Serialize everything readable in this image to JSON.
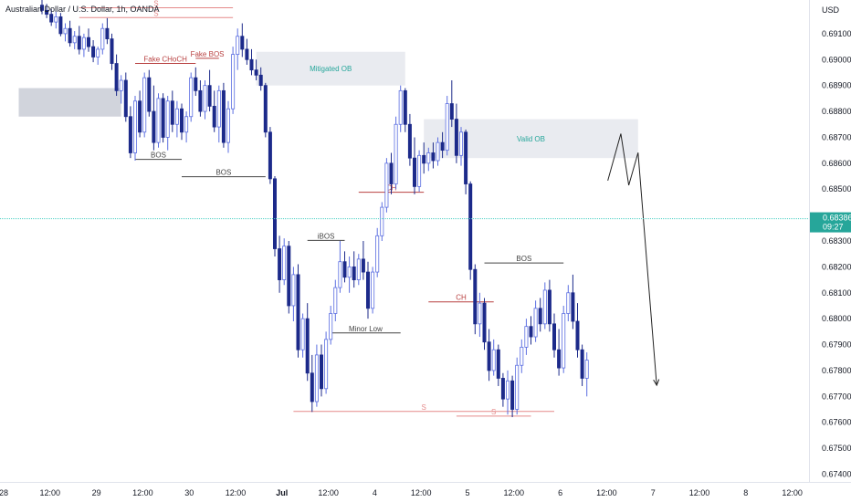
{
  "chart_data": {
    "type": "candlestick",
    "symbol_title": "Australian Dollar / U.S. Dollar, 1h, OANDA",
    "currency": "USD",
    "price_axis": {
      "ticks": [
        "0.69100",
        "0.69000",
        "0.68900",
        "0.68800",
        "0.68700",
        "0.68600",
        "0.68500",
        "0.68300",
        "0.68200",
        "0.68100",
        "0.68000",
        "0.67900",
        "0.67800",
        "0.67700",
        "0.67600",
        "0.67500",
        "0.67400"
      ],
      "range": [
        0.6737,
        0.6923
      ]
    },
    "time_axis": {
      "ticks": [
        "28",
        "12:00",
        "29",
        "12:00",
        "30",
        "12:00",
        "Jul",
        "12:00",
        "4",
        "12:00",
        "5",
        "12:00",
        "6",
        "12:00",
        "7",
        "12:00",
        "8",
        "12:00"
      ]
    },
    "current_price": {
      "value": "0.68386",
      "countdown": "09:27",
      "level": 0.68386
    },
    "zones": [
      {
        "label": "",
        "from_bar": -5,
        "to_bar": 17,
        "low": 0.6878,
        "high": 0.6889,
        "color": "#d1d4dc"
      },
      {
        "label": "Mitigated OB",
        "from_bar": 46,
        "to_bar": 78,
        "low": 0.689,
        "high": 0.6903,
        "color": "#e9ebf0"
      },
      {
        "label": "Valid OB",
        "from_bar": 82,
        "to_bar": 128,
        "low": 0.6862,
        "high": 0.6877,
        "color": "#e9ebf0"
      }
    ],
    "annotations": [
      {
        "label": "BOS",
        "type": "level",
        "from_bar": 20,
        "to_bar": 30,
        "price": 0.68615,
        "color": "#444444"
      },
      {
        "label": "BOS",
        "type": "level",
        "from_bar": 30,
        "to_bar": 48,
        "price": 0.68548,
        "color": "#444444"
      },
      {
        "label": "Fake CHoCH",
        "type": "level",
        "from_bar": 20,
        "to_bar": 33,
        "price": 0.68985,
        "color": "#b84040"
      },
      {
        "label": "Fake BOS",
        "type": "level",
        "from_bar": 33,
        "to_bar": 38,
        "price": 0.69005,
        "color": "#b84040"
      },
      {
        "label": "S",
        "type": "level",
        "from_bar": 8,
        "to_bar": 41,
        "price": 0.692,
        "color": "#e58a8a"
      },
      {
        "label": "S",
        "type": "level",
        "from_bar": 8,
        "to_bar": 41,
        "price": 0.69162,
        "color": "#e58a8a"
      },
      {
        "label": "CH",
        "type": "level",
        "from_bar": 68,
        "to_bar": 82,
        "price": 0.68488,
        "color": "#b84040"
      },
      {
        "label": "iBOS",
        "type": "level",
        "from_bar": 57,
        "to_bar": 65,
        "price": 0.68302,
        "color": "#444444"
      },
      {
        "label": "Minor Low",
        "type": "level",
        "from_bar": 62,
        "to_bar": 77,
        "price": 0.67945,
        "color": "#444444"
      },
      {
        "label": "CH",
        "type": "level",
        "from_bar": 83,
        "to_bar": 97,
        "price": 0.68065,
        "color": "#b84040"
      },
      {
        "label": "BOS",
        "type": "level",
        "from_bar": 95,
        "to_bar": 112,
        "price": 0.68215,
        "color": "#444444"
      },
      {
        "label": "S",
        "type": "level",
        "from_bar": 54,
        "to_bar": 110,
        "price": 0.67642,
        "color": "#e58a8a"
      },
      {
        "label": "S",
        "type": "level",
        "from_bar": 89,
        "to_bar": 105,
        "price": 0.67624,
        "color": "#e58a8a"
      }
    ],
    "projection": [
      [
        121.5,
        0.68533
      ],
      [
        124.3,
        0.68714
      ],
      [
        126.0,
        0.68515
      ],
      [
        128.0,
        0.68641
      ],
      [
        132.0,
        0.67743
      ]
    ],
    "candles": [
      {
        "o": 0.6921,
        "h": 0.6923,
        "l": 0.69175,
        "c": 0.6919
      },
      {
        "o": 0.6919,
        "h": 0.69215,
        "l": 0.6916,
        "c": 0.69175
      },
      {
        "o": 0.69175,
        "h": 0.69195,
        "l": 0.6913,
        "c": 0.69145
      },
      {
        "o": 0.69145,
        "h": 0.69185,
        "l": 0.6912,
        "c": 0.69165
      },
      {
        "o": 0.69165,
        "h": 0.6918,
        "l": 0.6909,
        "c": 0.691
      },
      {
        "o": 0.691,
        "h": 0.6914,
        "l": 0.6907,
        "c": 0.6912
      },
      {
        "o": 0.6912,
        "h": 0.6915,
        "l": 0.6905,
        "c": 0.69065
      },
      {
        "o": 0.69065,
        "h": 0.6911,
        "l": 0.6904,
        "c": 0.6909
      },
      {
        "o": 0.6909,
        "h": 0.6913,
        "l": 0.6902,
        "c": 0.6904
      },
      {
        "o": 0.6904,
        "h": 0.691,
        "l": 0.6901,
        "c": 0.69085
      },
      {
        "o": 0.69085,
        "h": 0.6912,
        "l": 0.6903,
        "c": 0.6905
      },
      {
        "o": 0.6905,
        "h": 0.69075,
        "l": 0.6899,
        "c": 0.6901
      },
      {
        "o": 0.6901,
        "h": 0.6905,
        "l": 0.6898,
        "c": 0.6904
      },
      {
        "o": 0.6904,
        "h": 0.6914,
        "l": 0.6902,
        "c": 0.6912
      },
      {
        "o": 0.6912,
        "h": 0.6916,
        "l": 0.6906,
        "c": 0.6908
      },
      {
        "o": 0.6908,
        "h": 0.691,
        "l": 0.6896,
        "c": 0.68985
      },
      {
        "o": 0.68985,
        "h": 0.6902,
        "l": 0.6886,
        "c": 0.6888
      },
      {
        "o": 0.6888,
        "h": 0.6894,
        "l": 0.6883,
        "c": 0.6892
      },
      {
        "o": 0.6892,
        "h": 0.6895,
        "l": 0.6876,
        "c": 0.6878
      },
      {
        "o": 0.6878,
        "h": 0.6882,
        "l": 0.6862,
        "c": 0.6864
      },
      {
        "o": 0.6864,
        "h": 0.6886,
        "l": 0.6861,
        "c": 0.6884
      },
      {
        "o": 0.6884,
        "h": 0.6888,
        "l": 0.687,
        "c": 0.6872
      },
      {
        "o": 0.6872,
        "h": 0.6895,
        "l": 0.687,
        "c": 0.6893
      },
      {
        "o": 0.6893,
        "h": 0.6896,
        "l": 0.6878,
        "c": 0.688
      },
      {
        "o": 0.688,
        "h": 0.689,
        "l": 0.6865,
        "c": 0.6868
      },
      {
        "o": 0.6868,
        "h": 0.6887,
        "l": 0.6866,
        "c": 0.6885
      },
      {
        "o": 0.6885,
        "h": 0.6887,
        "l": 0.6868,
        "c": 0.687
      },
      {
        "o": 0.687,
        "h": 0.6886,
        "l": 0.6865,
        "c": 0.6884
      },
      {
        "o": 0.6884,
        "h": 0.6888,
        "l": 0.6872,
        "c": 0.6875
      },
      {
        "o": 0.6875,
        "h": 0.6884,
        "l": 0.687,
        "c": 0.6881
      },
      {
        "o": 0.6881,
        "h": 0.6883,
        "l": 0.6869,
        "c": 0.6872
      },
      {
        "o": 0.6872,
        "h": 0.688,
        "l": 0.6868,
        "c": 0.6878
      },
      {
        "o": 0.6878,
        "h": 0.6895,
        "l": 0.6876,
        "c": 0.6893
      },
      {
        "o": 0.6893,
        "h": 0.6897,
        "l": 0.6886,
        "c": 0.6888
      },
      {
        "o": 0.6888,
        "h": 0.6892,
        "l": 0.6878,
        "c": 0.688
      },
      {
        "o": 0.688,
        "h": 0.6892,
        "l": 0.6877,
        "c": 0.689
      },
      {
        "o": 0.689,
        "h": 0.6896,
        "l": 0.688,
        "c": 0.6882
      },
      {
        "o": 0.6882,
        "h": 0.6888,
        "l": 0.6872,
        "c": 0.6874
      },
      {
        "o": 0.6874,
        "h": 0.689,
        "l": 0.6868,
        "c": 0.6888
      },
      {
        "o": 0.6888,
        "h": 0.6891,
        "l": 0.6866,
        "c": 0.6868
      },
      {
        "o": 0.6868,
        "h": 0.6884,
        "l": 0.6864,
        "c": 0.6881
      },
      {
        "o": 0.6881,
        "h": 0.6905,
        "l": 0.6879,
        "c": 0.6902
      },
      {
        "o": 0.6902,
        "h": 0.6912,
        "l": 0.6896,
        "c": 0.6909
      },
      {
        "o": 0.6909,
        "h": 0.6914,
        "l": 0.6901,
        "c": 0.6904
      },
      {
        "o": 0.6904,
        "h": 0.6908,
        "l": 0.6898,
        "c": 0.69
      },
      {
        "o": 0.69,
        "h": 0.6904,
        "l": 0.6894,
        "c": 0.6896
      },
      {
        "o": 0.6896,
        "h": 0.69,
        "l": 0.6892,
        "c": 0.6894
      },
      {
        "o": 0.6894,
        "h": 0.6897,
        "l": 0.6888,
        "c": 0.689
      },
      {
        "o": 0.689,
        "h": 0.6891,
        "l": 0.687,
        "c": 0.6872
      },
      {
        "o": 0.6872,
        "h": 0.6874,
        "l": 0.6852,
        "c": 0.6854
      },
      {
        "o": 0.6854,
        "h": 0.6855,
        "l": 0.6824,
        "c": 0.6827
      },
      {
        "o": 0.6827,
        "h": 0.6832,
        "l": 0.681,
        "c": 0.6815
      },
      {
        "o": 0.6815,
        "h": 0.6831,
        "l": 0.6813,
        "c": 0.6828
      },
      {
        "o": 0.6828,
        "h": 0.683,
        "l": 0.6802,
        "c": 0.6805
      },
      {
        "o": 0.6805,
        "h": 0.682,
        "l": 0.6799,
        "c": 0.6817
      },
      {
        "o": 0.6817,
        "h": 0.6821,
        "l": 0.6785,
        "c": 0.6788
      },
      {
        "o": 0.6788,
        "h": 0.6802,
        "l": 0.6785,
        "c": 0.68
      },
      {
        "o": 0.68,
        "h": 0.6806,
        "l": 0.6776,
        "c": 0.6779
      },
      {
        "o": 0.6779,
        "h": 0.6786,
        "l": 0.6764,
        "c": 0.6768
      },
      {
        "o": 0.6768,
        "h": 0.679,
        "l": 0.6766,
        "c": 0.6786
      },
      {
        "o": 0.6786,
        "h": 0.679,
        "l": 0.677,
        "c": 0.6773
      },
      {
        "o": 0.6773,
        "h": 0.6795,
        "l": 0.6771,
        "c": 0.6792
      },
      {
        "o": 0.6792,
        "h": 0.6805,
        "l": 0.679,
        "c": 0.6802
      },
      {
        "o": 0.6802,
        "h": 0.6815,
        "l": 0.6799,
        "c": 0.6812
      },
      {
        "o": 0.6812,
        "h": 0.683,
        "l": 0.681,
        "c": 0.6822
      },
      {
        "o": 0.6822,
        "h": 0.6826,
        "l": 0.6814,
        "c": 0.6816
      },
      {
        "o": 0.6816,
        "h": 0.6824,
        "l": 0.681,
        "c": 0.682
      },
      {
        "o": 0.682,
        "h": 0.6826,
        "l": 0.6812,
        "c": 0.6815
      },
      {
        "o": 0.6815,
        "h": 0.6825,
        "l": 0.6813,
        "c": 0.6823
      },
      {
        "o": 0.6823,
        "h": 0.683,
        "l": 0.6815,
        "c": 0.6818
      },
      {
        "o": 0.6818,
        "h": 0.6822,
        "l": 0.68,
        "c": 0.6804
      },
      {
        "o": 0.6804,
        "h": 0.682,
        "l": 0.6802,
        "c": 0.6818
      },
      {
        "o": 0.6818,
        "h": 0.6835,
        "l": 0.6816,
        "c": 0.6832
      },
      {
        "o": 0.6832,
        "h": 0.6845,
        "l": 0.683,
        "c": 0.6843
      },
      {
        "o": 0.6843,
        "h": 0.6862,
        "l": 0.6841,
        "c": 0.686
      },
      {
        "o": 0.686,
        "h": 0.6864,
        "l": 0.6848,
        "c": 0.6852
      },
      {
        "o": 0.6852,
        "h": 0.6878,
        "l": 0.685,
        "c": 0.6875
      },
      {
        "o": 0.6875,
        "h": 0.689,
        "l": 0.6872,
        "c": 0.6888
      },
      {
        "o": 0.6888,
        "h": 0.6889,
        "l": 0.6872,
        "c": 0.6875
      },
      {
        "o": 0.6875,
        "h": 0.6879,
        "l": 0.6859,
        "c": 0.6862
      },
      {
        "o": 0.6862,
        "h": 0.687,
        "l": 0.6848,
        "c": 0.6851
      },
      {
        "o": 0.6851,
        "h": 0.6865,
        "l": 0.6849,
        "c": 0.6863
      },
      {
        "o": 0.6863,
        "h": 0.6868,
        "l": 0.6856,
        "c": 0.686
      },
      {
        "o": 0.686,
        "h": 0.6866,
        "l": 0.6857,
        "c": 0.6864
      },
      {
        "o": 0.6864,
        "h": 0.6868,
        "l": 0.6858,
        "c": 0.6861
      },
      {
        "o": 0.6861,
        "h": 0.687,
        "l": 0.6859,
        "c": 0.6868
      },
      {
        "o": 0.6868,
        "h": 0.6872,
        "l": 0.6862,
        "c": 0.6865
      },
      {
        "o": 0.6865,
        "h": 0.6886,
        "l": 0.6863,
        "c": 0.6883
      },
      {
        "o": 0.6883,
        "h": 0.6892,
        "l": 0.6874,
        "c": 0.6877
      },
      {
        "o": 0.6877,
        "h": 0.6883,
        "l": 0.686,
        "c": 0.6863
      },
      {
        "o": 0.6863,
        "h": 0.6874,
        "l": 0.6859,
        "c": 0.6872
      },
      {
        "o": 0.6872,
        "h": 0.6873,
        "l": 0.6848,
        "c": 0.6852
      },
      {
        "o": 0.6852,
        "h": 0.6853,
        "l": 0.6815,
        "c": 0.6819
      },
      {
        "o": 0.6819,
        "h": 0.6821,
        "l": 0.6794,
        "c": 0.6798
      },
      {
        "o": 0.6798,
        "h": 0.681,
        "l": 0.6793,
        "c": 0.6806
      },
      {
        "o": 0.6806,
        "h": 0.6808,
        "l": 0.6788,
        "c": 0.6791
      },
      {
        "o": 0.6791,
        "h": 0.6796,
        "l": 0.6776,
        "c": 0.678
      },
      {
        "o": 0.678,
        "h": 0.6792,
        "l": 0.6778,
        "c": 0.6788
      },
      {
        "o": 0.6788,
        "h": 0.679,
        "l": 0.6774,
        "c": 0.6777
      },
      {
        "o": 0.6777,
        "h": 0.6779,
        "l": 0.6766,
        "c": 0.6769
      },
      {
        "o": 0.6769,
        "h": 0.678,
        "l": 0.6763,
        "c": 0.6776
      },
      {
        "o": 0.6776,
        "h": 0.6778,
        "l": 0.6762,
        "c": 0.6765
      },
      {
        "o": 0.6765,
        "h": 0.6785,
        "l": 0.6763,
        "c": 0.6782
      },
      {
        "o": 0.6782,
        "h": 0.6792,
        "l": 0.6779,
        "c": 0.6789
      },
      {
        "o": 0.6789,
        "h": 0.68,
        "l": 0.6786,
        "c": 0.6797
      },
      {
        "o": 0.6797,
        "h": 0.6801,
        "l": 0.679,
        "c": 0.6793
      },
      {
        "o": 0.6793,
        "h": 0.6807,
        "l": 0.6791,
        "c": 0.6804
      },
      {
        "o": 0.6804,
        "h": 0.6808,
        "l": 0.6795,
        "c": 0.6798
      },
      {
        "o": 0.6798,
        "h": 0.6814,
        "l": 0.6796,
        "c": 0.6811
      },
      {
        "o": 0.6811,
        "h": 0.6815,
        "l": 0.6795,
        "c": 0.6798
      },
      {
        "o": 0.6798,
        "h": 0.6802,
        "l": 0.6785,
        "c": 0.6788
      },
      {
        "o": 0.6788,
        "h": 0.6796,
        "l": 0.6778,
        "c": 0.6781
      },
      {
        "o": 0.6781,
        "h": 0.6805,
        "l": 0.6779,
        "c": 0.6802
      },
      {
        "o": 0.6802,
        "h": 0.6813,
        "l": 0.6799,
        "c": 0.681
      },
      {
        "o": 0.681,
        "h": 0.6817,
        "l": 0.6796,
        "c": 0.6799
      },
      {
        "o": 0.6799,
        "h": 0.6806,
        "l": 0.6785,
        "c": 0.6788
      },
      {
        "o": 0.6788,
        "h": 0.679,
        "l": 0.6774,
        "c": 0.6777
      },
      {
        "o": 0.6777,
        "h": 0.6787,
        "l": 0.677,
        "c": 0.6784
      }
    ]
  }
}
